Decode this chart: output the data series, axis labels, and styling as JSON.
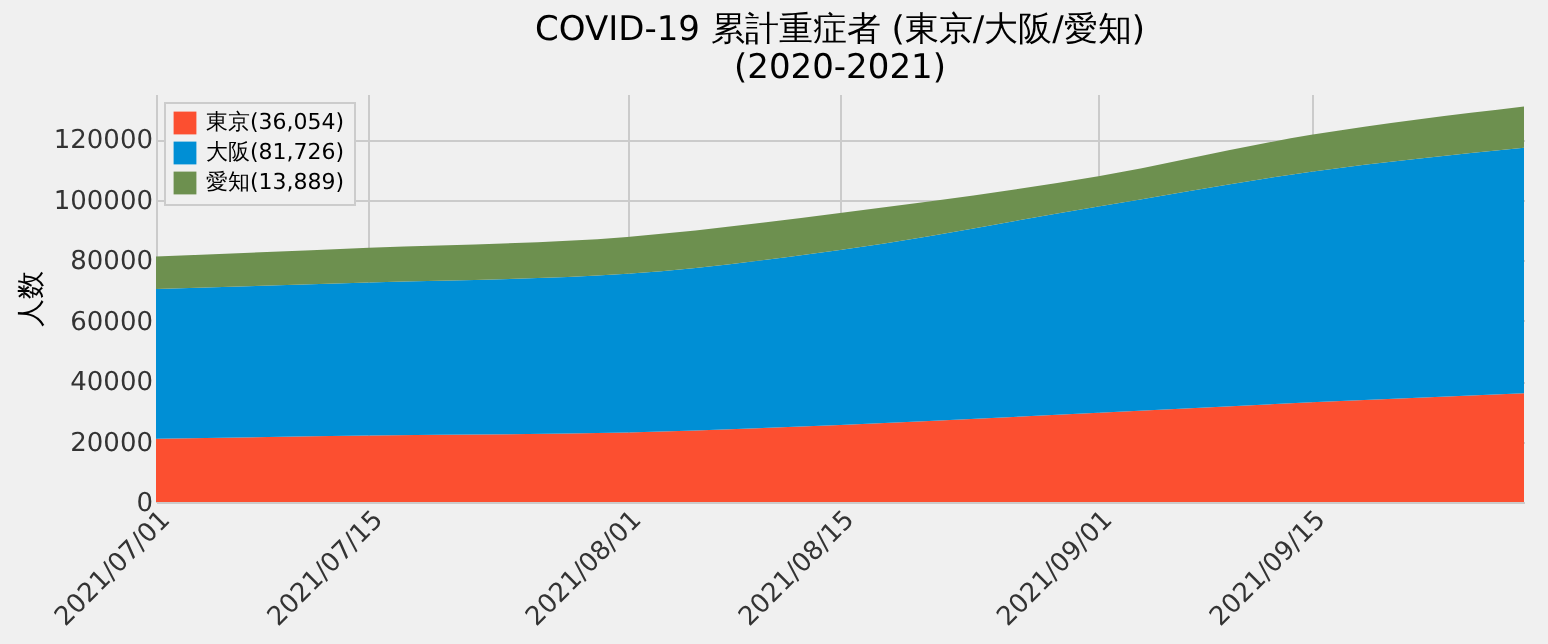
{
  "chart_data": {
    "type": "area",
    "title": "COVID-19 累計重症者 (東京/大阪/愛知)\n(2020-2021)",
    "ylabel": "人数",
    "x": [
      "2021-07-01",
      "2021-07-15",
      "2021-08-01",
      "2021-08-15",
      "2021-09-01",
      "2021-09-15",
      "2021-09-29"
    ],
    "stacked": true,
    "series": [
      {
        "name": "東京(36,054)",
        "color": "#fc4f30",
        "values": [
          20900,
          22000,
          23000,
          25500,
          29500,
          33000,
          36000
        ]
      },
      {
        "name": "大阪(81,726)",
        "color": "#008fd5",
        "values": [
          49600,
          50600,
          52500,
          57900,
          68300,
          76300,
          81200
        ]
      },
      {
        "name": "愛知(13,889)",
        "color": "#6d904f",
        "values": [
          10700,
          11500,
          12200,
          12200,
          10000,
          12200,
          13700
        ]
      }
    ],
    "xlim": [
      "2021-07-01",
      "2021-09-29"
    ],
    "xticks": [
      {
        "value": "2021-07-01",
        "label": "2021/07/01"
      },
      {
        "value": "2021-07-15",
        "label": "2021/07/15"
      },
      {
        "value": "2021-08-01",
        "label": "2021/08/01"
      },
      {
        "value": "2021-08-15",
        "label": "2021/08/15"
      },
      {
        "value": "2021-09-01",
        "label": "2021/09/01"
      },
      {
        "value": "2021-09-15",
        "label": "2021/09/15"
      }
    ],
    "ylim": [
      0,
      135000
    ],
    "yticks": [
      0,
      20000,
      40000,
      60000,
      80000,
      100000,
      120000
    ],
    "grid": true,
    "legend": "top left"
  }
}
